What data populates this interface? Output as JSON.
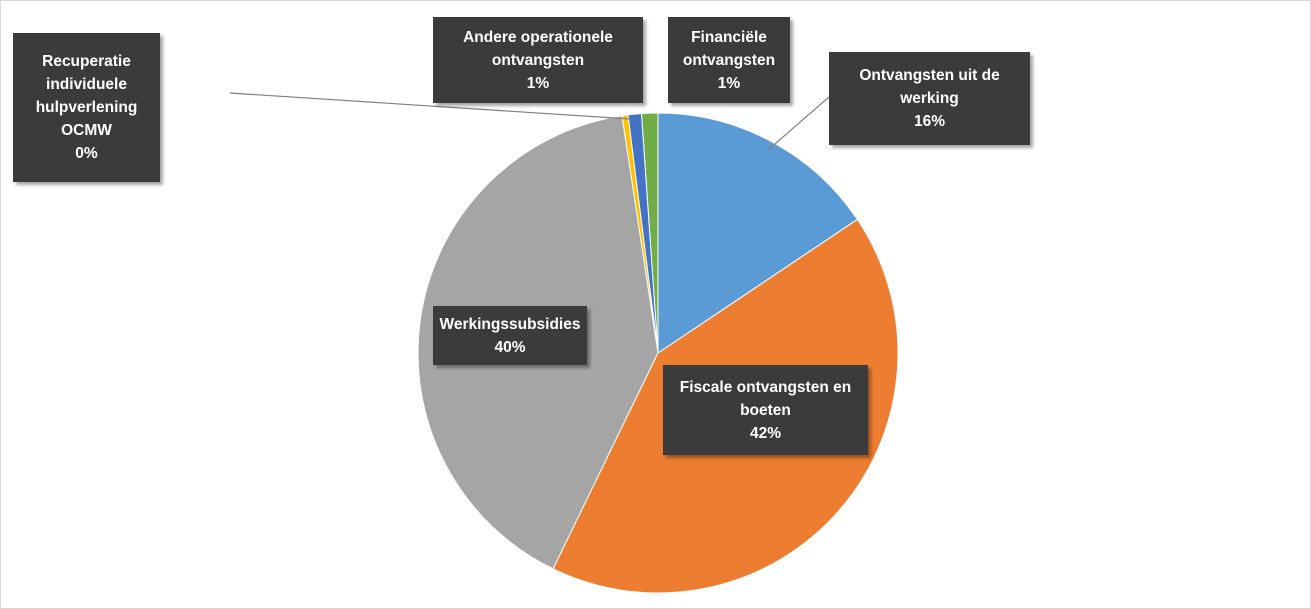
{
  "chart_data": {
    "type": "pie",
    "categories": [
      "Ontvangsten uit de werking",
      "Fiscale ontvangsten en boeten",
      "Werkingssubsidies",
      "Recuperatie individuele hulpverlening OCMW",
      "Andere operationele ontvangsten",
      "Financiële ontvangsten"
    ],
    "values": [
      15.6,
      41.6,
      40.4,
      0.4,
      0.9,
      1.1
    ],
    "value_labels": [
      "16%",
      "42%",
      "40%",
      "0%",
      "1%",
      "1%"
    ],
    "colors": [
      "#5b9bd5",
      "#ed7d31",
      "#a5a5a5",
      "#ffc000",
      "#4472c4",
      "#70ad47"
    ]
  }
}
